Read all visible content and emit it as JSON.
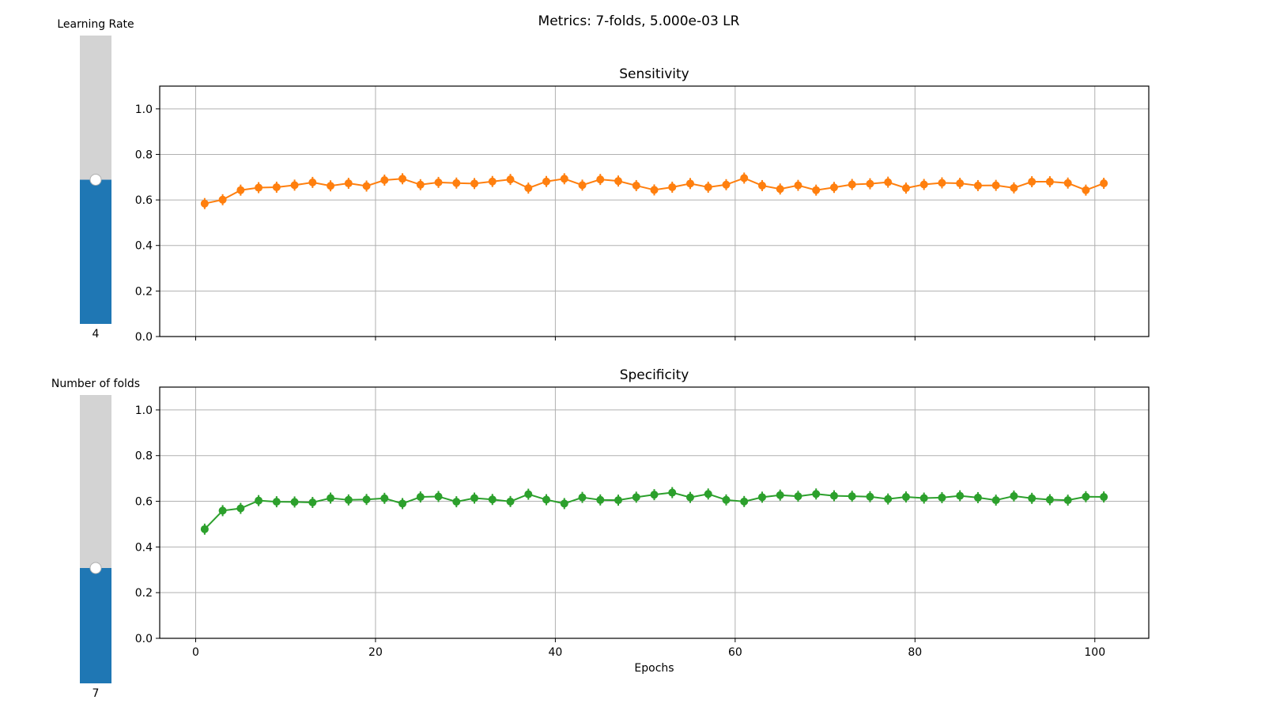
{
  "figure": {
    "suptitle": "Metrics: 7-folds, 5.000e-03 LR"
  },
  "sliders": [
    {
      "label": "Learning Rate",
      "value_text": "4",
      "fill_fraction": 0.5,
      "colors": {
        "filled": "#1f77b4",
        "track": "#d3d3d3",
        "handle": "#ffffff"
      }
    },
    {
      "label": "Number of folds",
      "value_text": "7",
      "fill_fraction": 0.4,
      "colors": {
        "filled": "#1f77b4",
        "track": "#d3d3d3",
        "handle": "#ffffff"
      }
    }
  ],
  "chart_data": [
    {
      "type": "line",
      "title": "Sensitivity",
      "xlabel": "",
      "ylabel": "",
      "xlim": [
        -4,
        106
      ],
      "ylim": [
        0,
        1.1
      ],
      "xticks": [
        0,
        20,
        40,
        60,
        80,
        100
      ],
      "xtick_labels_visible": false,
      "yticks": [
        0.0,
        0.2,
        0.4,
        0.6,
        0.8,
        1.0
      ],
      "grid": true,
      "marker": "circle",
      "error_bars": true,
      "color": "#ff7f0e",
      "x": [
        1,
        3,
        5,
        7,
        9,
        11,
        13,
        15,
        17,
        19,
        21,
        23,
        25,
        27,
        29,
        31,
        33,
        35,
        37,
        39,
        41,
        43,
        45,
        47,
        49,
        51,
        53,
        55,
        57,
        59,
        61,
        63,
        65,
        67,
        69,
        71,
        73,
        75,
        77,
        79,
        81,
        83,
        85,
        87,
        89,
        91,
        93,
        95,
        97,
        99,
        101
      ],
      "y": [
        0.584,
        0.601,
        0.643,
        0.654,
        0.656,
        0.665,
        0.677,
        0.662,
        0.673,
        0.661,
        0.687,
        0.693,
        0.667,
        0.677,
        0.674,
        0.672,
        0.681,
        0.69,
        0.652,
        0.681,
        0.693,
        0.665,
        0.69,
        0.683,
        0.663,
        0.644,
        0.656,
        0.672,
        0.656,
        0.667,
        0.696,
        0.663,
        0.648,
        0.664,
        0.643,
        0.655,
        0.668,
        0.671,
        0.678,
        0.652,
        0.668,
        0.675,
        0.673,
        0.663,
        0.664,
        0.653,
        0.68,
        0.68,
        0.674,
        0.643,
        0.673
      ]
    },
    {
      "type": "line",
      "title": "Specificity",
      "xlabel": "Epochs",
      "ylabel": "",
      "xlim": [
        -4,
        106
      ],
      "ylim": [
        0,
        1.1
      ],
      "xticks": [
        0,
        20,
        40,
        60,
        80,
        100
      ],
      "xtick_labels_visible": true,
      "yticks": [
        0.0,
        0.2,
        0.4,
        0.6,
        0.8,
        1.0
      ],
      "grid": true,
      "marker": "circle",
      "error_bars": true,
      "color": "#2ca02c",
      "x": [
        1,
        3,
        5,
        7,
        9,
        11,
        13,
        15,
        17,
        19,
        21,
        23,
        25,
        27,
        29,
        31,
        33,
        35,
        37,
        39,
        41,
        43,
        45,
        47,
        49,
        51,
        53,
        55,
        57,
        59,
        61,
        63,
        65,
        67,
        69,
        71,
        73,
        75,
        77,
        79,
        81,
        83,
        85,
        87,
        89,
        91,
        93,
        95,
        97,
        99,
        101
      ],
      "y": [
        0.478,
        0.559,
        0.569,
        0.603,
        0.598,
        0.597,
        0.595,
        0.614,
        0.606,
        0.608,
        0.613,
        0.59,
        0.619,
        0.621,
        0.598,
        0.614,
        0.608,
        0.599,
        0.631,
        0.607,
        0.59,
        0.617,
        0.606,
        0.605,
        0.618,
        0.629,
        0.638,
        0.617,
        0.632,
        0.606,
        0.599,
        0.618,
        0.627,
        0.622,
        0.632,
        0.624,
        0.622,
        0.62,
        0.61,
        0.619,
        0.614,
        0.616,
        0.624,
        0.616,
        0.605,
        0.623,
        0.613,
        0.607,
        0.605,
        0.62,
        0.619
      ]
    }
  ]
}
